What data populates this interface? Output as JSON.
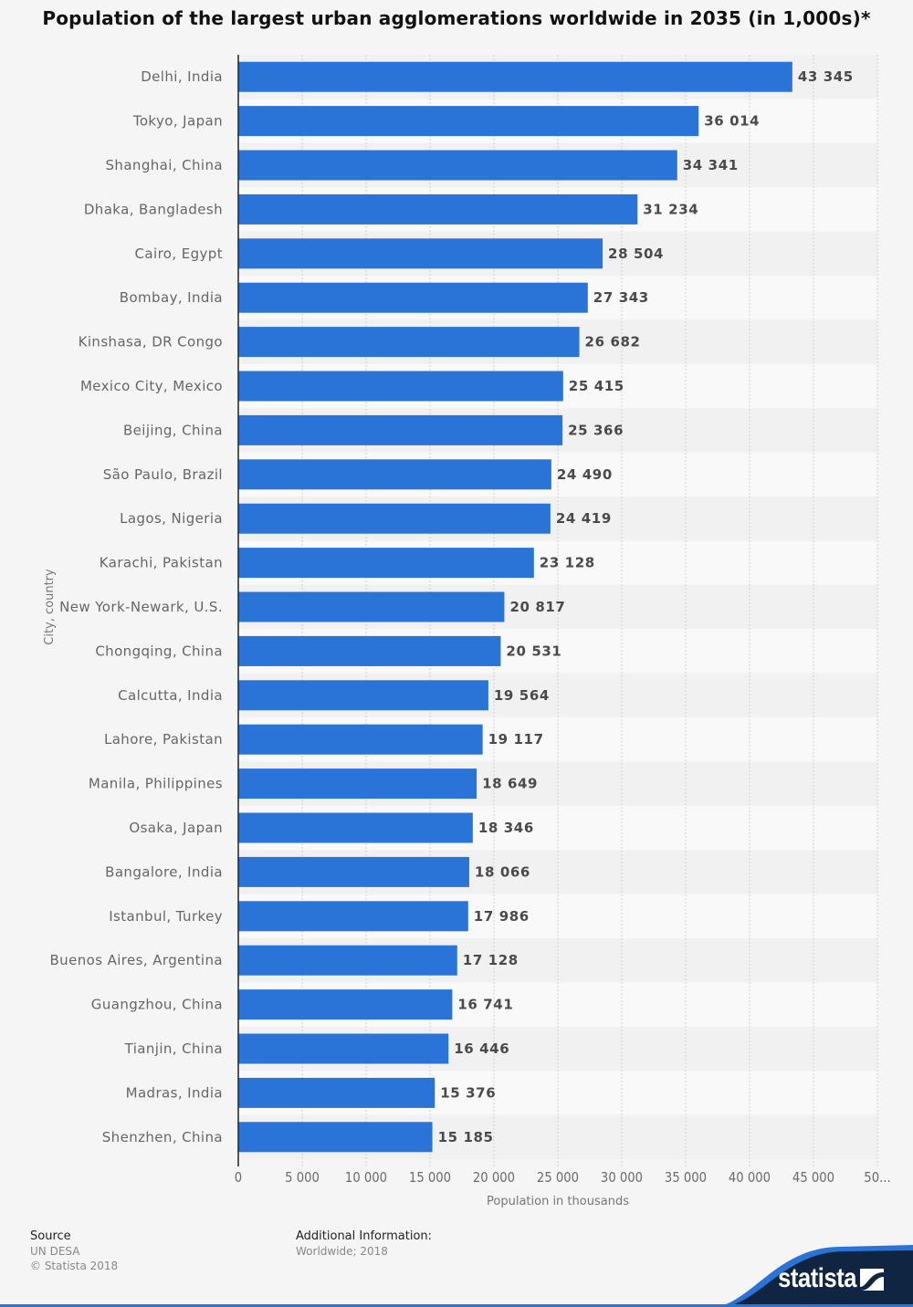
{
  "title": "Population of the largest urban agglomerations worldwide in 2035 (in 1,000s)*",
  "chart_data": {
    "type": "bar",
    "orientation": "horizontal",
    "title": "Population of the largest urban agglomerations worldwide in 2035 (in 1,000s)*",
    "xlabel": "Population in thousands",
    "ylabel": "City, country",
    "xlim": [
      0,
      50000
    ],
    "xticks": [
      0,
      5000,
      10000,
      15000,
      20000,
      25000,
      30000,
      35000,
      40000,
      45000,
      50000
    ],
    "xtick_labels": [
      "0",
      "5 000",
      "10 000",
      "15 000",
      "20 000",
      "25 000",
      "30 000",
      "35 000",
      "40 000",
      "45 000",
      "50..."
    ],
    "grid": true,
    "bar_color": "#2a74d8",
    "categories": [
      "Delhi, India",
      "Tokyo, Japan",
      "Shanghai, China",
      "Dhaka, Bangladesh",
      "Cairo, Egypt",
      "Bombay, India",
      "Kinshasa, DR Congo",
      "Mexico City, Mexico",
      "Beijing, China",
      "São Paulo, Brazil",
      "Lagos, Nigeria",
      "Karachi, Pakistan",
      "New York-Newark, U.S.",
      "Chongqing, China",
      "Calcutta, India",
      "Lahore, Pakistan",
      "Manila, Philippines",
      "Osaka, Japan",
      "Bangalore, India",
      "Istanbul, Turkey",
      "Buenos Aires, Argentina",
      "Guangzhou, China",
      "Tianjin, China",
      "Madras, India",
      "Shenzhen, China"
    ],
    "values": [
      43345,
      36014,
      34341,
      31234,
      28504,
      27343,
      26682,
      25415,
      25366,
      24490,
      24419,
      23128,
      20817,
      20531,
      19564,
      19117,
      18649,
      18346,
      18066,
      17986,
      17128,
      16741,
      16446,
      15376,
      15185
    ],
    "value_labels": [
      "43 345",
      "36 014",
      "34 341",
      "31 234",
      "28 504",
      "27 343",
      "26 682",
      "25 415",
      "25 366",
      "24 490",
      "24 419",
      "23 128",
      "20 817",
      "20 531",
      "19 564",
      "19 117",
      "18 649",
      "18 346",
      "18 066",
      "17 986",
      "17 128",
      "16 741",
      "16 446",
      "15 376",
      "15 185"
    ]
  },
  "footer": {
    "source_heading": "Source",
    "source_lines": [
      "UN DESA",
      "© Statista 2018"
    ],
    "additional_heading": "Additional Information:",
    "additional_lines": [
      "Worldwide; 2018"
    ]
  },
  "brand": {
    "name": "statista",
    "logo_icon": "statista-logo-icon"
  },
  "colors": {
    "bar": "#2a74d8",
    "brand_dark": "#0f2541",
    "brand_blue": "#2a74d8"
  }
}
